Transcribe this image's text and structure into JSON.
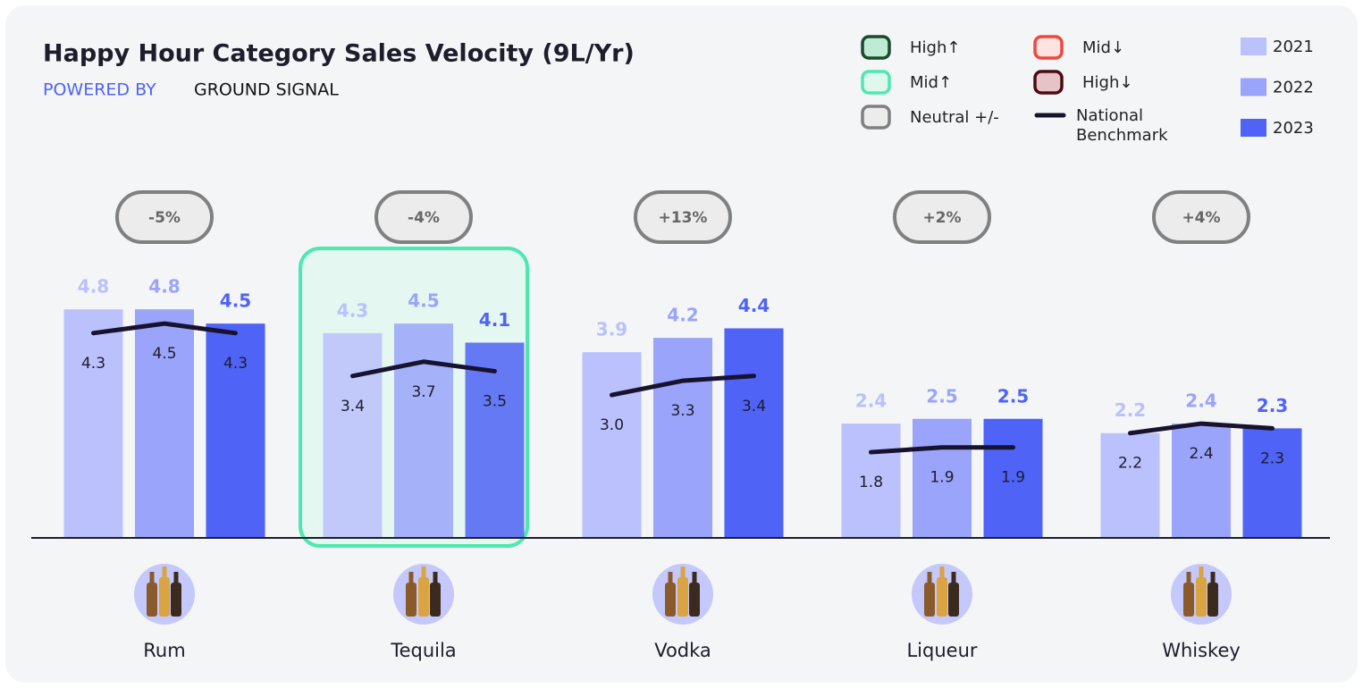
{
  "chart_data": {
    "type": "bar",
    "title": "Happy Hour Category Sales Velocity (9L/Yr)",
    "subtitle": [
      "POWERED BY",
      "GROUND SIGNAL"
    ],
    "categories": [
      "Rum",
      "Tequila",
      "Vodka",
      "Liqueur",
      "Whiskey"
    ],
    "series": [
      {
        "name": "2021",
        "color": "#bac1fc",
        "values": [
          4.8,
          4.3,
          3.9,
          2.4,
          2.2
        ]
      },
      {
        "name": "2022",
        "color": "#9aa4fa",
        "values": [
          4.8,
          4.5,
          4.2,
          2.5,
          2.4
        ]
      },
      {
        "name": "2023",
        "color": "#4f63f6",
        "values": [
          4.5,
          4.1,
          4.4,
          2.5,
          2.3
        ]
      }
    ],
    "benchmark": {
      "name": "National Benchmark",
      "color": "#17132f",
      "values": [
        [
          4.3,
          4.5,
          4.3
        ],
        [
          3.4,
          3.7,
          3.5
        ],
        [
          3.0,
          3.3,
          3.4
        ],
        [
          1.8,
          1.9,
          1.9
        ],
        [
          2.2,
          2.4,
          2.3
        ]
      ],
      "value_labels": [
        [
          "4.3",
          "4.5",
          "4.3"
        ],
        [
          "3.4",
          "3.7",
          "3.5"
        ],
        [
          "3.0",
          "3.3",
          "3.4"
        ],
        [
          "1.8",
          "1.9",
          "1.9"
        ],
        [
          "2.2",
          "2.4",
          "2.3"
        ]
      ]
    },
    "changes": {
      "values": [
        -5,
        -4,
        13,
        2,
        4
      ],
      "value_labels": [
        "-5%",
        "-4%",
        "+13%",
        "+2%",
        "+4%"
      ],
      "status": [
        2,
        2,
        2,
        2,
        2
      ]
    },
    "highlight_status": [
      null,
      1,
      null,
      null,
      null
    ],
    "status_legend": [
      {
        "name": "High↑",
        "color": "#1d4a2c",
        "fill": "#bdebd3"
      },
      {
        "name": "Mid↑",
        "color": "#4de8b0",
        "fill": "#dff7ee"
      },
      {
        "name": "Neutral +/-",
        "color": "#808080",
        "fill": "#ececec"
      },
      {
        "name": "Mid↓",
        "color": "#f2473a",
        "fill": "#fde3e1"
      },
      {
        "name": "High↓",
        "color": "#4a0c12",
        "fill": "#e6c3c8"
      }
    ]
  }
}
